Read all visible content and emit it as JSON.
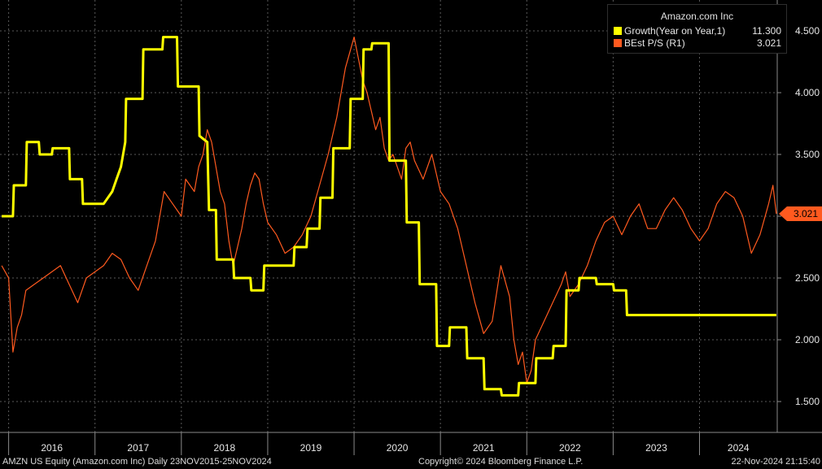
{
  "legend": {
    "title": "Amazon.com Inc",
    "growth_label": "Growth(Year on Year,1)",
    "growth_value": "11.300",
    "ps_label": "BEst P/S  (R1)",
    "ps_value": "3.021"
  },
  "footer": {
    "left": "AMZN US Equity (Amazon.com Inc)  Daily 23NOV2015-25NOV2024",
    "center": "Copyright© 2024 Bloomberg Finance L.P.",
    "right": "22-Nov-2024 21:15:40"
  },
  "colors": {
    "growth": "#ffff00",
    "ps": "#ff5a1f",
    "last_tag": "#ff5a1f",
    "grid": "#5a5a5a"
  },
  "chart_data": {
    "type": "line",
    "x_range": [
      2015.9,
      2024.9
    ],
    "y_range": [
      1.25,
      4.75
    ],
    "y_ticks": [
      "1.500",
      "2.000",
      "2.500",
      "3.000",
      "3.500",
      "4.000",
      "4.500"
    ],
    "x_ticks": [
      "2016",
      "2017",
      "2018",
      "2019",
      "2020",
      "2021",
      "2022",
      "2023",
      "2024"
    ],
    "last_value_tag": "3.021",
    "series": [
      {
        "name": "BEst P/S  (R1)",
        "color": "#ff5a1f",
        "x": [
          2015.92,
          2016.0,
          2016.05,
          2016.1,
          2016.15,
          2016.2,
          2016.3,
          2016.4,
          2016.5,
          2016.6,
          2016.7,
          2016.8,
          2016.9,
          2017.0,
          2017.1,
          2017.2,
          2017.3,
          2017.4,
          2017.5,
          2017.6,
          2017.7,
          2017.75,
          2017.8,
          2017.9,
          2018.0,
          2018.05,
          2018.15,
          2018.2,
          2018.25,
          2018.3,
          2018.35,
          2018.4,
          2018.45,
          2018.5,
          2018.55,
          2018.6,
          2018.65,
          2018.7,
          2018.75,
          2018.8,
          2018.85,
          2018.9,
          2018.95,
          2019.0,
          2019.1,
          2019.2,
          2019.3,
          2019.4,
          2019.5,
          2019.6,
          2019.7,
          2019.8,
          2019.9,
          2020.0,
          2020.1,
          2020.15,
          2020.2,
          2020.25,
          2020.3,
          2020.35,
          2020.4,
          2020.45,
          2020.5,
          2020.55,
          2020.6,
          2020.65,
          2020.7,
          2020.8,
          2020.9,
          2021.0,
          2021.1,
          2021.2,
          2021.3,
          2021.4,
          2021.5,
          2021.6,
          2021.7,
          2021.8,
          2021.85,
          2021.9,
          2021.95,
          2022.0,
          2022.05,
          2022.1,
          2022.2,
          2022.3,
          2022.4,
          2022.45,
          2022.5,
          2022.6,
          2022.7,
          2022.8,
          2022.9,
          2023.0,
          2023.1,
          2023.2,
          2023.3,
          2023.4,
          2023.5,
          2023.6,
          2023.7,
          2023.8,
          2023.9,
          2024.0,
          2024.1,
          2024.2,
          2024.3,
          2024.4,
          2024.5,
          2024.6,
          2024.7,
          2024.8,
          2024.85,
          2024.89
        ],
        "y": [
          2.6,
          2.5,
          1.9,
          2.1,
          2.2,
          2.4,
          2.45,
          2.5,
          2.55,
          2.6,
          2.45,
          2.3,
          2.5,
          2.55,
          2.6,
          2.7,
          2.65,
          2.5,
          2.4,
          2.6,
          2.8,
          3.0,
          3.2,
          3.1,
          3.0,
          3.3,
          3.2,
          3.4,
          3.5,
          3.7,
          3.6,
          3.4,
          3.2,
          3.1,
          2.8,
          2.6,
          2.75,
          2.9,
          3.1,
          3.25,
          3.35,
          3.3,
          3.1,
          2.95,
          2.85,
          2.7,
          2.75,
          2.85,
          3.0,
          3.25,
          3.5,
          3.8,
          4.2,
          4.45,
          4.1,
          4.0,
          3.85,
          3.7,
          3.8,
          3.55,
          3.45,
          3.5,
          3.4,
          3.3,
          3.55,
          3.6,
          3.45,
          3.3,
          3.5,
          3.2,
          3.1,
          2.9,
          2.6,
          2.3,
          2.05,
          2.15,
          2.6,
          2.35,
          2.0,
          1.8,
          1.9,
          1.65,
          1.75,
          2.0,
          2.15,
          2.3,
          2.45,
          2.55,
          2.35,
          2.45,
          2.6,
          2.8,
          2.95,
          3.0,
          2.85,
          3.0,
          3.1,
          2.9,
          2.9,
          3.05,
          3.15,
          3.05,
          2.9,
          2.8,
          2.9,
          3.1,
          3.2,
          3.15,
          3.0,
          2.7,
          2.85,
          3.1,
          3.25,
          3.02
        ]
      },
      {
        "name": "Growth(Year on Year,1)",
        "color": "#ffff00",
        "x": [
          2015.92,
          2016.05,
          2016.06,
          2016.2,
          2016.21,
          2016.35,
          2016.36,
          2016.5,
          2016.51,
          2016.7,
          2016.71,
          2016.85,
          2016.86,
          2017.05,
          2017.1,
          2017.2,
          2017.25,
          2017.3,
          2017.35,
          2017.36,
          2017.55,
          2017.56,
          2017.78,
          2017.79,
          2017.95,
          2017.96,
          2018.2,
          2018.21,
          2018.3,
          2018.32,
          2018.4,
          2018.41,
          2018.6,
          2018.61,
          2018.8,
          2018.81,
          2018.95,
          2018.96,
          2019.15,
          2019.16,
          2019.3,
          2019.31,
          2019.45,
          2019.46,
          2019.6,
          2019.61,
          2019.75,
          2019.76,
          2019.95,
          2019.96,
          2020.1,
          2020.11,
          2020.2,
          2020.21,
          2020.4,
          2020.41,
          2020.6,
          2020.61,
          2020.75,
          2020.76,
          2020.95,
          2020.96,
          2021.1,
          2021.11,
          2021.3,
          2021.31,
          2021.5,
          2021.51,
          2021.7,
          2021.71,
          2021.9,
          2021.91,
          2022.1,
          2022.11,
          2022.3,
          2022.31,
          2022.45,
          2022.46,
          2022.6,
          2022.61,
          2022.8,
          2022.81,
          2023.0,
          2023.01,
          2023.15,
          2023.16,
          2023.3,
          2023.31,
          2023.45,
          2023.46,
          2023.6,
          2023.61,
          2023.8,
          2023.81,
          2024.0,
          2024.01,
          2024.2,
          2024.21,
          2024.3,
          2024.31,
          2024.5,
          2024.51,
          2024.7,
          2024.71,
          2024.89
        ],
        "y": [
          3.0,
          3.0,
          3.25,
          3.25,
          3.6,
          3.6,
          3.5,
          3.5,
          3.55,
          3.55,
          3.3,
          3.3,
          3.1,
          3.1,
          3.1,
          3.2,
          3.3,
          3.4,
          3.6,
          3.95,
          3.95,
          4.35,
          4.35,
          4.45,
          4.45,
          4.05,
          4.05,
          3.65,
          3.6,
          3.05,
          3.05,
          2.65,
          2.65,
          2.5,
          2.5,
          2.4,
          2.4,
          2.6,
          2.6,
          2.6,
          2.6,
          2.75,
          2.75,
          2.9,
          2.9,
          3.15,
          3.15,
          3.55,
          3.55,
          3.95,
          3.95,
          4.35,
          4.35,
          4.4,
          4.4,
          3.45,
          3.45,
          2.95,
          2.95,
          2.45,
          2.45,
          1.95,
          1.95,
          2.1,
          2.1,
          1.85,
          1.85,
          1.6,
          1.6,
          1.55,
          1.55,
          1.65,
          1.65,
          1.85,
          1.85,
          1.95,
          1.95,
          2.4,
          2.4,
          2.5,
          2.5,
          2.45,
          2.45,
          2.4,
          2.4,
          2.2,
          2.2,
          2.2,
          2.2,
          2.2,
          2.2,
          2.2,
          2.2,
          2.2,
          2.2,
          2.2,
          2.2,
          2.2,
          2.2,
          2.2,
          2.2,
          2.2,
          2.2,
          2.2,
          2.2
        ]
      }
    ]
  }
}
